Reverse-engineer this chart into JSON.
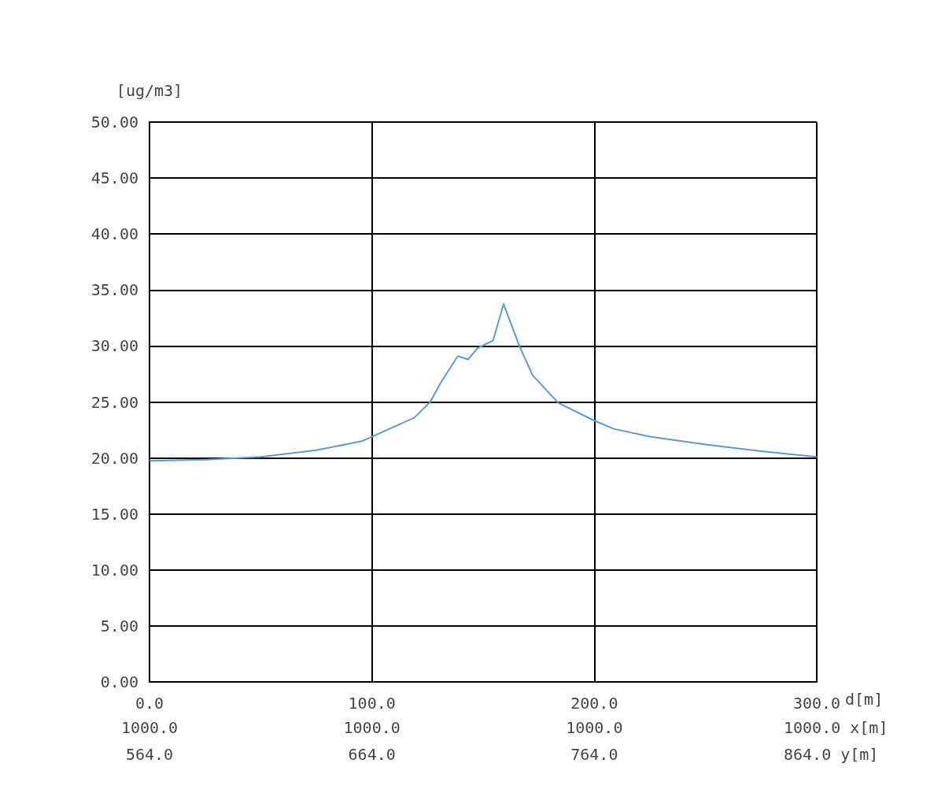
{
  "chart_data": {
    "type": "line",
    "ylabel": "[ug/m3]",
    "xlabel": "d[m]",
    "annotations": [
      "1000.0",
      "1000.0",
      "1000.0",
      "1000.0 x[m]",
      "564.0",
      "664.0",
      "764.0",
      "864.0 y[m]"
    ],
    "x": [
      0,
      25,
      50,
      75,
      95.5,
      100,
      119.1,
      126.2,
      130.9,
      138.6,
      143.3,
      147.4,
      154.5,
      159.2,
      166.3,
      172.2,
      183.9,
      199.3,
      208.7,
      225,
      250,
      275,
      300
    ],
    "series": [
      {
        "color": "#5b9bd5",
        "values": [
          19.75,
          19.85,
          20.1,
          20.7,
          21.5,
          21.9,
          23.6,
          25.0,
          26.7,
          29.1,
          28.8,
          29.8,
          30.5,
          33.75,
          30.0,
          27.4,
          24.9,
          23.4,
          22.6,
          21.9,
          21.2,
          20.6,
          20.1
        ]
      }
    ],
    "xlim": [
      0,
      300
    ],
    "xticks": [
      {
        "value": 0,
        "label": "0.0"
      },
      {
        "value": 100,
        "label": "100.0"
      },
      {
        "value": 200,
        "label": "200.0"
      },
      {
        "value": 300,
        "label": "300.0"
      }
    ],
    "ylim": [
      0,
      50
    ],
    "yticks": [
      {
        "value": 0,
        "label": "0.00"
      },
      {
        "value": 5,
        "label": "5.00"
      },
      {
        "value": 10,
        "label": "10.00"
      },
      {
        "value": 15,
        "label": "15.00"
      },
      {
        "value": 20,
        "label": "20.00"
      },
      {
        "value": 25,
        "label": "25.00"
      },
      {
        "value": 30,
        "label": "30.00"
      },
      {
        "value": 35,
        "label": "35.00"
      },
      {
        "value": 40,
        "label": "40.00"
      },
      {
        "value": 45,
        "label": "45.00"
      },
      {
        "value": 50,
        "label": "50.00"
      }
    ],
    "grid": true,
    "marker": "none",
    "line_style": "solid"
  }
}
